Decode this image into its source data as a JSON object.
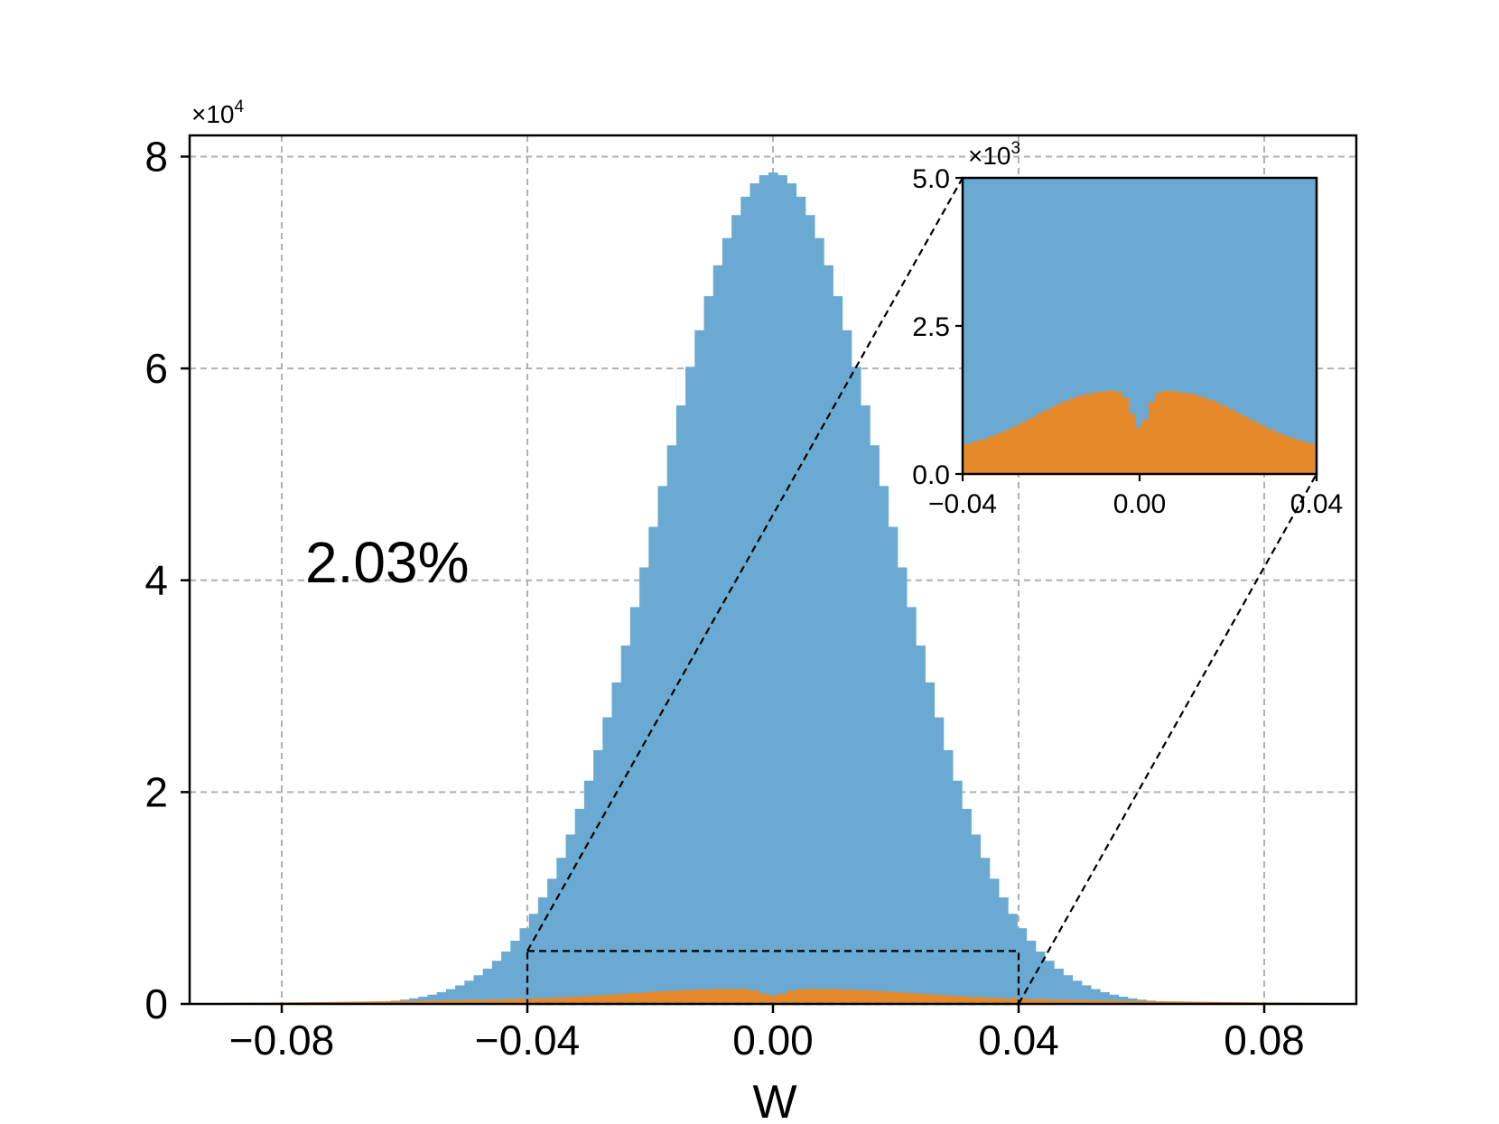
{
  "chart_data": {
    "type": "bar",
    "xlabel": "W",
    "ylabel": "",
    "title": "",
    "annotation": "2.03%",
    "x_ticks": [
      "−0.08",
      "−0.04",
      "0.00",
      "0.04",
      "0.08"
    ],
    "x_tick_values": [
      -0.08,
      -0.04,
      0.0,
      0.04,
      0.08
    ],
    "y_ticks": [
      "0",
      "2",
      "4",
      "6",
      "8"
    ],
    "y_tick_values": [
      0,
      20000,
      40000,
      60000,
      80000
    ],
    "y_multiplier": {
      "base": "×10",
      "exp": "4"
    },
    "xlim": [
      -0.095,
      0.095
    ],
    "ylim": [
      0,
      82000
    ],
    "grid": true,
    "grid_style": "dashed",
    "bin_width": 0.0015,
    "series": [
      {
        "color": "#6aaad2",
        "distribution": "gaussian",
        "mean": 0.0,
        "std": 0.0185,
        "peak": 78500
      },
      {
        "color": "#e5892a",
        "distribution": "bimodal-near-zero",
        "peak": 1300
      }
    ],
    "zoom_box": {
      "x_range": [
        -0.04,
        0.04
      ],
      "y_range": [
        0,
        5000
      ]
    },
    "inset": {
      "xlim": [
        -0.04,
        0.04
      ],
      "ylim": [
        0,
        5000
      ],
      "x_ticks": [
        "−0.04",
        "0.00",
        "0.04"
      ],
      "x_tick_values": [
        -0.04,
        0.0,
        0.04
      ],
      "y_ticks": [
        "0.0",
        "2.5",
        "5.0"
      ],
      "y_tick_values": [
        0,
        2500,
        5000
      ],
      "y_multiplier": {
        "base": "×10",
        "exp": "3"
      }
    },
    "colors": {
      "blue": "#6aaad2",
      "orange": "#e5892a",
      "grid": "#b0b0b0"
    }
  }
}
